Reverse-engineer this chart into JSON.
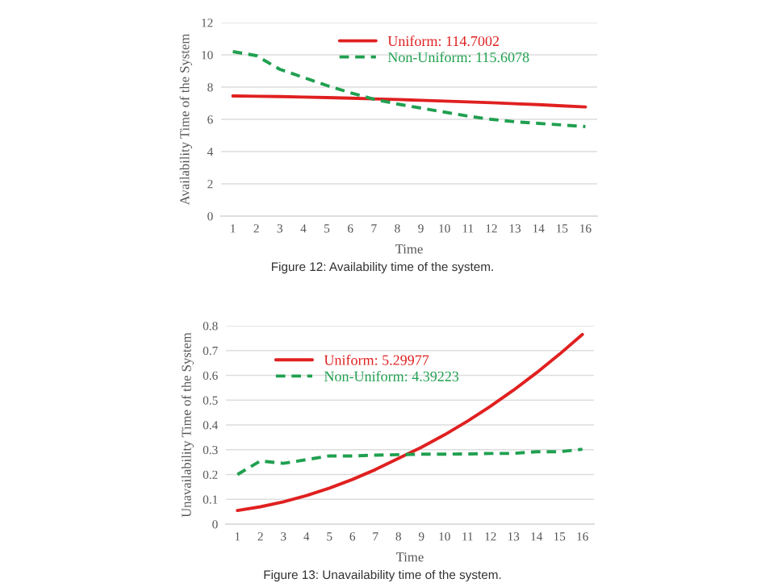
{
  "chart_data": [
    {
      "type": "line",
      "xlabel": "Time",
      "ylabel": "Availability Time of the System",
      "categories": [
        "1",
        "2",
        "3",
        "4",
        "5",
        "6",
        "7",
        "8",
        "9",
        "10",
        "11",
        "12",
        "13",
        "14",
        "15",
        "16"
      ],
      "series": [
        {
          "name": "Uniform: 114.7002",
          "color": "#e02020",
          "line_style": "solid",
          "values": [
            7.45,
            7.43,
            7.41,
            7.38,
            7.35,
            7.31,
            7.27,
            7.23,
            7.18,
            7.13,
            7.08,
            7.03,
            6.97,
            6.91,
            6.84,
            6.77
          ]
        },
        {
          "name": "Non-Uniform: 115.6078",
          "color": "#20a050",
          "line_style": "dashed",
          "values": [
            10.2,
            9.95,
            9.1,
            8.6,
            8.1,
            7.65,
            7.25,
            6.95,
            6.7,
            6.45,
            6.2,
            6.0,
            5.85,
            5.75,
            5.65,
            5.55
          ]
        }
      ],
      "ylim": [
        0,
        12
      ],
      "yticks": [
        0,
        2,
        4,
        6,
        8,
        10,
        12
      ],
      "grid": "y",
      "legend": "top",
      "annotations": [
        "Figure 12: Availability time of the system."
      ]
    },
    {
      "type": "line",
      "xlabel": "Time",
      "ylabel": "Unavailability Time of the System",
      "categories": [
        "1",
        "2",
        "3",
        "4",
        "5",
        "6",
        "7",
        "8",
        "9",
        "10",
        "11",
        "12",
        "13",
        "14",
        "15",
        "16"
      ],
      "series": [
        {
          "name": "Uniform: 5.29977",
          "color": "#e02020",
          "line_style": "solid",
          "values": [
            0.055,
            0.07,
            0.09,
            0.115,
            0.145,
            0.18,
            0.22,
            0.265,
            0.31,
            0.36,
            0.415,
            0.475,
            0.54,
            0.61,
            0.685,
            0.765
          ]
        },
        {
          "name": "Non-Uniform: 4.39223",
          "color": "#20a050",
          "line_style": "dashed",
          "values": [
            0.2,
            0.255,
            0.245,
            0.26,
            0.275,
            0.275,
            0.278,
            0.28,
            0.282,
            0.282,
            0.283,
            0.285,
            0.285,
            0.292,
            0.292,
            0.302
          ]
        }
      ],
      "ylim": [
        0,
        0.8
      ],
      "yticks": [
        0,
        0.1,
        0.2,
        0.3,
        0.4,
        0.5,
        0.6,
        0.7,
        0.8
      ],
      "grid": "y",
      "legend": "top left",
      "annotations": [
        "Figure 13: Unavailability time of the system."
      ]
    }
  ]
}
